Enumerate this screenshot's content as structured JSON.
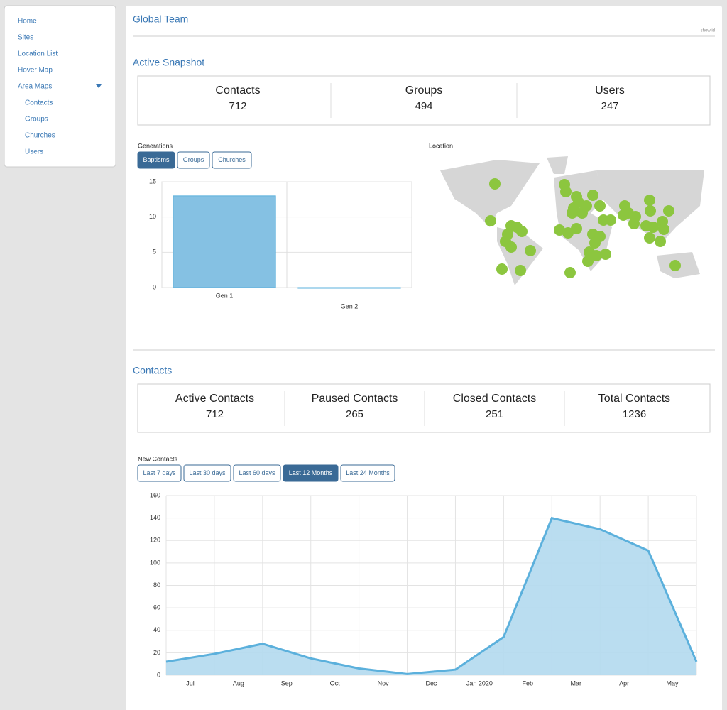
{
  "sidebar": {
    "items": [
      "Home",
      "Sites",
      "Location List",
      "Hover Map",
      "Area Maps"
    ],
    "subitems": [
      "Contacts",
      "Groups",
      "Churches",
      "Users"
    ]
  },
  "header": {
    "title": "Global Team",
    "show_id": "show id"
  },
  "snapshot": {
    "title": "Active Snapshot",
    "stats": [
      {
        "label": "Contacts",
        "value": 712
      },
      {
        "label": "Groups",
        "value": 494
      },
      {
        "label": "Users",
        "value": 247
      }
    ]
  },
  "generations": {
    "label": "Generations",
    "buttons": [
      "Baptisms",
      "Groups",
      "Churches"
    ]
  },
  "location": {
    "label": "Location"
  },
  "contacts": {
    "title": "Contacts",
    "stats": [
      {
        "label": "Active Contacts",
        "value": 712
      },
      {
        "label": "Paused Contacts",
        "value": 265
      },
      {
        "label": "Closed Contacts",
        "value": 251
      },
      {
        "label": "Total Contacts",
        "value": 1236
      }
    ]
  },
  "new_contacts": {
    "label": "New Contacts",
    "buttons": [
      "Last 7 days",
      "Last 30 days",
      "Last 60 days",
      "Last 12 Months",
      "Last 24 Months"
    ]
  },
  "chart_data": [
    {
      "type": "bar",
      "categories": [
        "Gen 1",
        "Gen 2"
      ],
      "values": [
        13,
        0
      ],
      "color": "#85c1e3",
      "ylim": [
        0,
        15
      ],
      "yticks": [
        0,
        5,
        10,
        15
      ],
      "grid": true
    },
    {
      "type": "line",
      "x": [
        0,
        1,
        2,
        3,
        4,
        5,
        6,
        7,
        8,
        9,
        10,
        11
      ],
      "values": [
        12,
        19,
        28,
        15,
        6,
        1,
        5,
        34,
        140,
        130,
        111,
        12
      ],
      "color": "#5bb0dc",
      "fill": "#b3d9ee",
      "xlim": [
        0,
        11
      ],
      "xticks": [
        {
          "value": 0.5,
          "label": "Jul"
        },
        {
          "value": 1.5,
          "label": "Aug"
        },
        {
          "value": 2.5,
          "label": "Sep"
        },
        {
          "value": 3.5,
          "label": "Oct"
        },
        {
          "value": 4.5,
          "label": "Nov"
        },
        {
          "value": 5.5,
          "label": "Dec"
        },
        {
          "value": 6.5,
          "label": "Jan 2020"
        },
        {
          "value": 7.5,
          "label": "Feb"
        },
        {
          "value": 8.5,
          "label": "Mar"
        },
        {
          "value": 9.5,
          "label": "Apr"
        },
        {
          "value": 10.5,
          "label": "May"
        }
      ],
      "ylim": [
        0,
        160
      ],
      "yticks": [
        0,
        20,
        40,
        60,
        80,
        100,
        120,
        140,
        160
      ],
      "grid": true
    }
  ]
}
